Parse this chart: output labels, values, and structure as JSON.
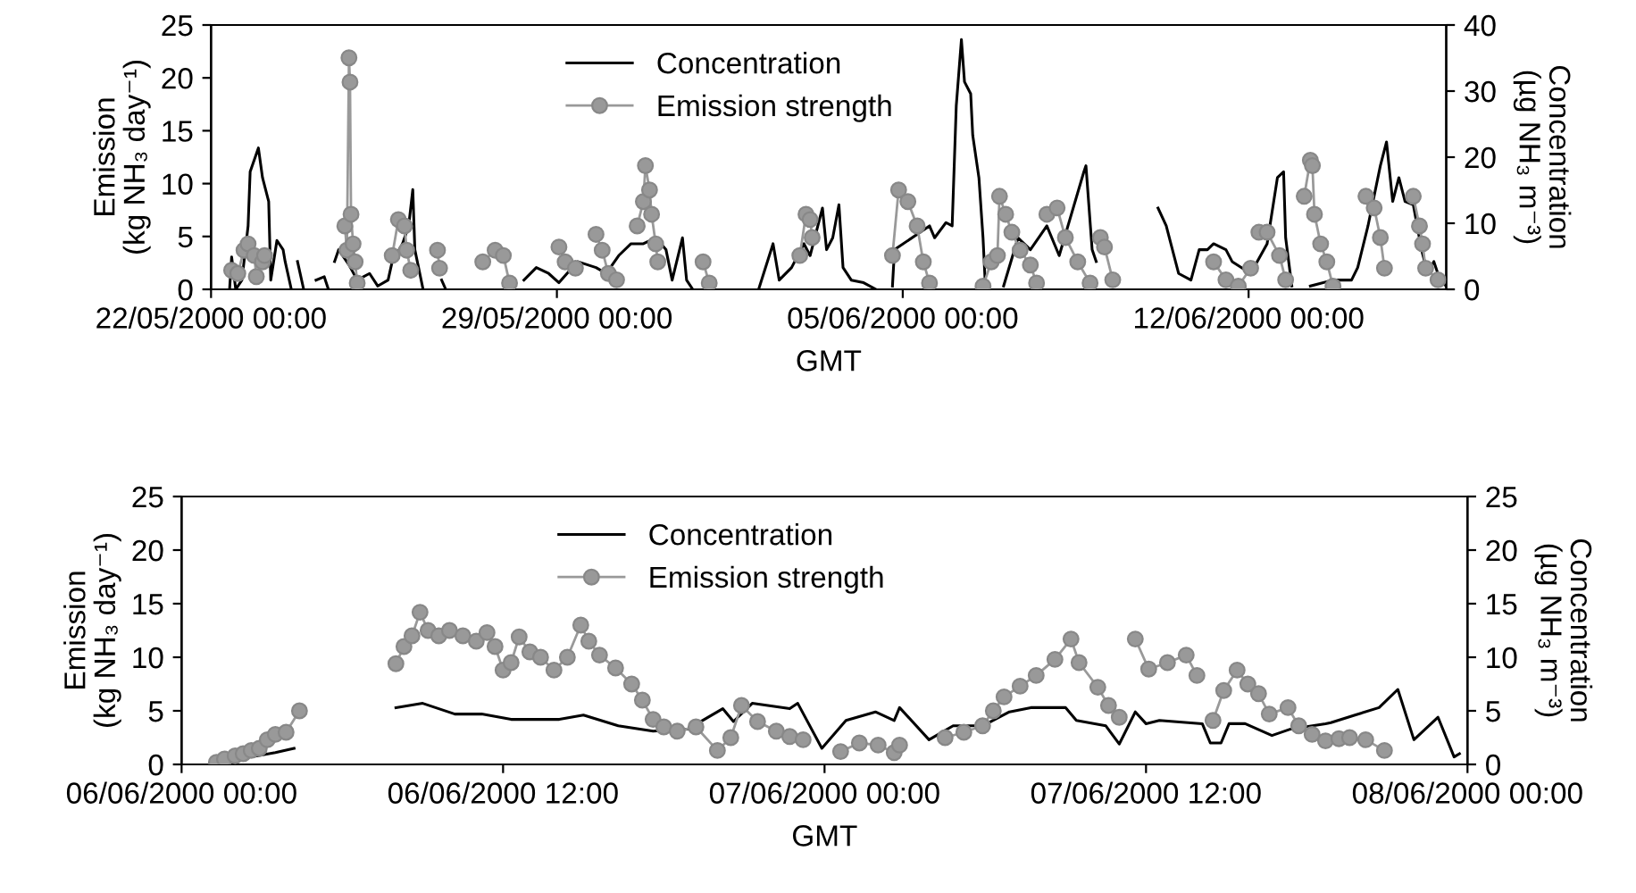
{
  "chart_data": [
    {
      "type": "line",
      "xlabel": "GMT",
      "ylabel": "Emission\n(kg NH₃ day⁻¹)",
      "y2label": "Concentration\n(µg NH₃ m⁻³)",
      "xlim": [
        "2000-05-22T00:00",
        "2000-06-16T00:00"
      ],
      "xticks": [
        {
          "value": "2000-05-22T00:00",
          "label": "22/05/2000 00:00"
        },
        {
          "value": "2000-05-29T00:00",
          "label": "29/05/2000 00:00"
        },
        {
          "value": "2000-06-05T00:00",
          "label": "05/06/2000 00:00"
        },
        {
          "value": "2000-06-12T00:00",
          "label": "12/06/2000 00:00"
        }
      ],
      "ylim": [
        0,
        25
      ],
      "yticks": [
        0,
        5,
        10,
        15,
        20,
        25
      ],
      "y2lim": [
        0,
        40
      ],
      "y2ticks": [
        0,
        10,
        20,
        30,
        40
      ],
      "legend": "top",
      "grid": false,
      "series": [
        {
          "name": "Concentration",
          "axis": "y2",
          "color": "#000000",
          "marker": "none",
          "line_style": "solid",
          "x": [
            "2000-05-22T09:00",
            "2000-05-22T10:00",
            "2000-05-22T12:00",
            "2000-05-22T15:00",
            "2000-05-22T18:00",
            "2000-05-22T19:00",
            "2000-05-22T23:00",
            "2000-05-23T01:00",
            "2000-05-23T04:00",
            "2000-05-23T05:00",
            "2000-05-23T08:00",
            "2000-05-23T11:00",
            "2000-05-23T12:00",
            "2000-05-23T15:00",
            "2000-05-23T16:00",
            "2000-05-23T18:00",
            "2000-05-23T21:00",
            "2000-05-24T00:00",
            "2000-05-24T03:00",
            "2000-05-24T07:00",
            "2000-05-24T09:00",
            "2000-05-24T10:00",
            "2000-05-24T12:00",
            "2000-05-24T14:00",
            "2000-05-24T19:00",
            "2000-05-24T23:00",
            "2000-05-25T05:00",
            "2000-05-25T09:00",
            "2000-05-25T14:00",
            "2000-05-25T16:00",
            "2000-05-25T21:00",
            "2000-05-26T00:00",
            "2000-05-26T02:00",
            "2000-05-26T03:00",
            "2000-05-26T07:00",
            "2000-05-26T12:00",
            "2000-05-26T16:00",
            "2000-05-26T18:00",
            "2000-05-27T00:00",
            "2000-05-27T07:00",
            "2000-05-27T10:00",
            "2000-05-27T15:00",
            "2000-05-27T20:00",
            "2000-05-28T02:00",
            "2000-05-28T08:00",
            "2000-05-28T14:00",
            "2000-05-28T20:00",
            "2000-05-29T01:00",
            "2000-05-29T10:00",
            "2000-05-29T19:00",
            "2000-05-30T00:00",
            "2000-05-30T06:00",
            "2000-05-30T12:00",
            "2000-05-30T18:00",
            "2000-05-31T00:00",
            "2000-05-31T05:00",
            "2000-05-31T08:00",
            "2000-05-31T13:00",
            "2000-05-31T15:00",
            "2000-05-31T18:00",
            "2000-06-01T10:00",
            "2000-06-02T02:00",
            "2000-06-02T09:00",
            "2000-06-02T12:00",
            "2000-06-02T18:00",
            "2000-06-03T00:00",
            "2000-06-03T03:00",
            "2000-06-03T09:00",
            "2000-06-03T11:00",
            "2000-06-03T14:00",
            "2000-06-03T17:00",
            "2000-06-03T19:00",
            "2000-06-03T23:00",
            "2000-06-04T05:00",
            "2000-06-04T11:00",
            "2000-06-04T15:00",
            "2000-06-04T19:00",
            "2000-06-04T20:00",
            "2000-06-05T13:00",
            "2000-06-05T15:30",
            "2000-06-05T21:00",
            "2000-06-06T00:00",
            "2000-06-06T02:00",
            "2000-06-06T04:30",
            "2000-06-06T06:00",
            "2000-06-06T09:00",
            "2000-06-06T10:00",
            "2000-06-06T13:00",
            "2000-06-06T15:00",
            "2000-06-06T16:00",
            "2000-06-06T20:00",
            "2000-06-07T01:00",
            "2000-06-07T08:00",
            "2000-06-07T14:00",
            "2000-06-07T22:00",
            "2000-06-08T04:00",
            "2000-06-08T16:00",
            "2000-06-08T17:00",
            "2000-06-08T20:00",
            "2000-06-08T22:00",
            "2000-06-09T13:00",
            "2000-06-10T04:00",
            "2000-06-10T08:00",
            "2000-06-10T14:00",
            "2000-06-10T20:00",
            "2000-06-11T00:00",
            "2000-06-11T04:00",
            "2000-06-11T07:00",
            "2000-06-11T13:00",
            "2000-06-11T16:00",
            "2000-06-12T01:00",
            "2000-06-12T09:00",
            "2000-06-12T14:00",
            "2000-06-12T17:00",
            "2000-06-12T18:00",
            "2000-06-12T21:00",
            "2000-06-13T02:00",
            "2000-06-13T06:00",
            "2000-06-13T17:00",
            "2000-06-14T02:00",
            "2000-06-14T05:00",
            "2000-06-14T10:00",
            "2000-06-14T16:00",
            "2000-06-14T19:00",
            "2000-06-14T22:00",
            "2000-06-15T01:00",
            "2000-06-15T04:00",
            "2000-06-15T08:00",
            "2000-06-15T12:00",
            "2000-06-15T15:00",
            "2000-06-15T18:00",
            "2000-06-15T21:00",
            "2000-06-16T00:00"
          ],
          "values": [
            0,
            4.9,
            0,
            1.4,
            9.6,
            17.8,
            21.4,
            16.9,
            13.3,
            1.4,
            7.4,
            6.0,
            4.2,
            0,
            null,
            4.2,
            0,
            null,
            1.4,
            1.9,
            0,
            null,
            4.2,
            6.0,
            3.7,
            1.4,
            2.4,
            0.5,
            1.4,
            4.2,
            6.9,
            9.6,
            15.1,
            6.0,
            0,
            null,
            1.4,
            0,
            null,
            null,
            null,
            null,
            null,
            null,
            1.4,
            3.3,
            2.4,
            1.0,
            4.2,
            3.3,
            2.4,
            5.1,
            6.9,
            6.9,
            7.8,
            6.0,
            1.4,
            7.8,
            1.4,
            0,
            null,
            0,
            6.9,
            1.4,
            3.3,
            6.9,
            5.1,
            12.3,
            6.0,
            7.8,
            12.8,
            3.3,
            1.4,
            1.0,
            0,
            null,
            0.5,
            6.0,
            9.6,
            7.8,
            10.1,
            9.6,
            27.8,
            37.8,
            31.4,
            29.6,
            23.3,
            16.9,
            7.8,
            1.4,
            null,
            0.5,
            7.8,
            6.0,
            9.6,
            5.1,
            17.8,
            18.7,
            6.0,
            4.2,
            null,
            12.3,
            9.6,
            2.4,
            1.4,
            6.0,
            6.0,
            6.9,
            6.0,
            4.2,
            2.4,
            6.9,
            16.9,
            17.8,
            7.8,
            0.5,
            null,
            0.5,
            1.4,
            1.4,
            3.3,
            9.6,
            18.7,
            22.3,
            13.3,
            16.9,
            13.3,
            12.8,
            6.0,
            2.4,
            4.2,
            1.4,
            0.5
          ]
        },
        {
          "name": "Emission strength",
          "color": "#999999",
          "marker": "circle",
          "line_style": "solid",
          "x": [
            "2000-05-22T10:00",
            "2000-05-22T13:00",
            "2000-05-22T16:00",
            "2000-05-22T18:00",
            "2000-05-22T21:00",
            "2000-05-22T22:00",
            "2000-05-23T01:00",
            "2000-05-23T02:00",
            "2000-05-23T21:00",
            "2000-05-24T17:00",
            "2000-05-24T18:00",
            "2000-05-24T19:00",
            "2000-05-24T19:30",
            "2000-05-24T20:00",
            "2000-05-24T21:00",
            "2000-05-24T22:00",
            "2000-05-24T23:00",
            "2000-05-25T08:00",
            "2000-05-25T16:00",
            "2000-05-25T19:00",
            "2000-05-25T22:00",
            "2000-05-25T23:00",
            "2000-05-26T01:00",
            "2000-05-26T04:00",
            "2000-05-26T14:00",
            "2000-05-26T15:00",
            "2000-05-27T00:00",
            "2000-05-27T12:00",
            "2000-05-27T18:00",
            "2000-05-27T22:00",
            "2000-05-28T01:00",
            "2000-05-28T16:00",
            "2000-05-29T01:00",
            "2000-05-29T04:00",
            "2000-05-29T09:00",
            "2000-05-29T12:00",
            "2000-05-29T19:00",
            "2000-05-29T22:00",
            "2000-05-30T01:00",
            "2000-05-30T05:00",
            "2000-05-30T08:00",
            "2000-05-30T15:00",
            "2000-05-30T18:00",
            "2000-05-30T19:00",
            "2000-05-30T21:00",
            "2000-05-30T22:00",
            "2000-05-31T00:00",
            "2000-05-31T01:00",
            "2000-05-31T14:00",
            "2000-05-31T23:00",
            "2000-06-01T02:00",
            "2000-06-01T20:00",
            "2000-06-02T22:00",
            "2000-06-03T01:00",
            "2000-06-03T03:00",
            "2000-06-03T04:00",
            "2000-06-03T22:00",
            "2000-06-04T19:00",
            "2000-06-04T22:00",
            "2000-06-05T02:30",
            "2000-06-05T07:00",
            "2000-06-05T10:00",
            "2000-06-05T13:00",
            "2000-06-06T00:00",
            "2000-06-06T15:00",
            "2000-06-06T19:00",
            "2000-06-06T22:00",
            "2000-06-06T23:00",
            "2000-06-07T02:00",
            "2000-06-07T05:00",
            "2000-06-07T09:00",
            "2000-06-07T14:00",
            "2000-06-07T17:00",
            "2000-06-07T19:00",
            "2000-06-07T22:00",
            "2000-06-08T03:00",
            "2000-06-08T07:00",
            "2000-06-08T13:00",
            "2000-06-08T19:00",
            "2000-06-08T22:00",
            "2000-06-09T00:00",
            "2000-06-09T02:00",
            "2000-06-09T06:00",
            "2000-06-10T04:00",
            "2000-06-11T07:00",
            "2000-06-11T13:00",
            "2000-06-11T19:00",
            "2000-06-12T01:00",
            "2000-06-12T03:00",
            "2000-06-12T05:00",
            "2000-06-12T09:00",
            "2000-06-12T15:00",
            "2000-06-12T18:00",
            "2000-06-13T00:00",
            "2000-06-13T03:00",
            "2000-06-13T06:00",
            "2000-06-13T07:00",
            "2000-06-13T08:00",
            "2000-06-13T11:00",
            "2000-06-13T14:00",
            "2000-06-13T17:00",
            "2000-06-13T22:00",
            "2000-06-14T09:00",
            "2000-06-14T13:00",
            "2000-06-14T16:00",
            "2000-06-14T18:00",
            "2000-06-15T04:00",
            "2000-06-15T08:00",
            "2000-06-15T11:00",
            "2000-06-15T12:30",
            "2000-06-15T14:00",
            "2000-06-15T20:00"
          ],
          "values": [
            1.8,
            1.5,
            3.7,
            4.3,
            3.2,
            1.2,
            2.6,
            3.2,
            null,
            6.0,
            3.7,
            21.9,
            19.6,
            7.1,
            4.3,
            2.6,
            0.6,
            null,
            3.2,
            6.6,
            6.0,
            3.7,
            1.8,
            null,
            3.7,
            2.0,
            null,
            2.6,
            3.7,
            3.2,
            0.6,
            null,
            4.0,
            2.6,
            2.0,
            null,
            5.2,
            3.7,
            1.5,
            0.9,
            null,
            6.0,
            8.3,
            11.7,
            9.4,
            7.1,
            4.3,
            2.6,
            null,
            2.6,
            0.6,
            null,
            3.2,
            7.1,
            6.6,
            4.9,
            null,
            3.2,
            9.4,
            8.3,
            6.0,
            2.6,
            0.6,
            null,
            0.3,
            2.6,
            3.2,
            8.8,
            7.1,
            5.4,
            3.7,
            2.3,
            0.6,
            null,
            7.1,
            7.7,
            4.9,
            2.6,
            0.6,
            null,
            4.9,
            4.0,
            0.9,
            null,
            2.6,
            0.9,
            0.3,
            2.0,
            null,
            5.4,
            5.4,
            3.2,
            0.9,
            null,
            8.8,
            12.2,
            11.7,
            7.1,
            4.3,
            2.6,
            0.3,
            null,
            8.8,
            7.7,
            4.9,
            2.0,
            null,
            8.8,
            6.0,
            4.3,
            2.0,
            0.9
          ]
        }
      ]
    },
    {
      "type": "line",
      "xlabel": "GMT",
      "ylabel": "Emission\n(kg NH₃ day⁻¹)",
      "y2label": "Concentration\n(µg NH₃ m⁻³)",
      "xlim": [
        "2000-06-06T00:00",
        "2000-06-08T00:00"
      ],
      "xticks": [
        {
          "value": "2000-06-06T00:00",
          "label": "06/06/2000 00:00"
        },
        {
          "value": "2000-06-06T12:00",
          "label": "06/06/2000 12:00"
        },
        {
          "value": "2000-06-07T00:00",
          "label": "07/06/2000 00:00"
        },
        {
          "value": "2000-06-07T12:00",
          "label": "07/06/2000 12:00"
        },
        {
          "value": "2000-06-08T00:00",
          "label": "08/06/2000 00:00"
        }
      ],
      "ylim": [
        0,
        25
      ],
      "yticks": [
        0,
        5,
        10,
        15,
        20,
        25
      ],
      "y2lim": [
        0,
        25
      ],
      "y2ticks": [
        0,
        5,
        10,
        15,
        20,
        25
      ],
      "legend": "top",
      "grid": false,
      "series": [
        {
          "name": "Concentration",
          "axis": "y2",
          "color": "#000000",
          "marker": "none",
          "line_style": "solid",
          "x": [
            "2000-06-06T01:18",
            "2000-06-06T02:00",
            "2000-06-06T02:48",
            "2000-06-06T03:30",
            "2000-06-06T04:12",
            "2000-06-06T06:00",
            "2000-06-06T08:00",
            "2000-06-06T09:00",
            "2000-06-06T10:12",
            "2000-06-06T11:12",
            "2000-06-06T12:18",
            "2000-06-06T14:06",
            "2000-06-06T15:00",
            "2000-06-06T16:18",
            "2000-06-06T17:36",
            "2000-06-06T18:54",
            "2000-06-06T20:12",
            "2000-06-06T20:36",
            "2000-06-06T21:18",
            "2000-06-06T22:42",
            "2000-06-06T23:00",
            "2000-06-06T23:54",
            "2000-06-07T00:48",
            "2000-06-07T01:54",
            "2000-06-07T02:36",
            "2000-06-07T02:48",
            "2000-06-07T03:54",
            "2000-06-07T04:48",
            "2000-06-07T05:54",
            "2000-06-07T06:54",
            "2000-06-07T07:42",
            "2000-06-07T09:00",
            "2000-06-07T09:24",
            "2000-06-07T10:30",
            "2000-06-07T11:00",
            "2000-06-07T11:36",
            "2000-06-07T12:00",
            "2000-06-07T12:30",
            "2000-06-07T14:06",
            "2000-06-07T14:24",
            "2000-06-07T14:48",
            "2000-06-07T15:06",
            "2000-06-07T15:42",
            "2000-06-07T16:42",
            "2000-06-07T17:24",
            "2000-06-07T18:42",
            "2000-06-07T18:54",
            "2000-06-07T19:48",
            "2000-06-07T20:42",
            "2000-06-07T21:24",
            "2000-06-07T22:00",
            "2000-06-07T22:54",
            "2000-06-07T23:30",
            "2000-06-07T23:42"
          ],
          "values": [
            0.2,
            0.5,
            0.8,
            1.1,
            1.5,
            null,
            5.3,
            5.7,
            4.7,
            4.7,
            4.2,
            4.2,
            4.6,
            3.6,
            3.1,
            3.3,
            5.2,
            4.0,
            5.7,
            5.2,
            5.7,
            1.5,
            4.1,
            4.9,
            4.1,
            5.3,
            2.3,
            3.6,
            3.6,
            4.9,
            5.3,
            5.3,
            4.1,
            3.6,
            1.9,
            4.9,
            3.8,
            4.1,
            3.8,
            2.0,
            2.0,
            3.8,
            3.8,
            2.7,
            3.3,
            3.8,
            3.9,
            4.6,
            5.3,
            7.0,
            2.3,
            4.4,
            0.7,
            1.0
          ]
        },
        {
          "name": "Emission strength",
          "color": "#999999",
          "marker": "circle",
          "line_style": "solid",
          "x": [
            "2000-06-06T01:18",
            "2000-06-06T01:36",
            "2000-06-06T02:00",
            "2000-06-06T02:18",
            "2000-06-06T02:36",
            "2000-06-06T02:54",
            "2000-06-06T03:12",
            "2000-06-06T03:30",
            "2000-06-06T03:54",
            "2000-06-06T04:24",
            "2000-06-06T06:00",
            "2000-06-06T08:00",
            "2000-06-06T08:18",
            "2000-06-06T08:36",
            "2000-06-06T08:54",
            "2000-06-06T09:12",
            "2000-06-06T09:36",
            "2000-06-06T10:00",
            "2000-06-06T10:30",
            "2000-06-06T11:00",
            "2000-06-06T11:24",
            "2000-06-06T11:42",
            "2000-06-06T12:00",
            "2000-06-06T12:18",
            "2000-06-06T12:36",
            "2000-06-06T13:00",
            "2000-06-06T13:24",
            "2000-06-06T13:54",
            "2000-06-06T14:24",
            "2000-06-06T14:54",
            "2000-06-06T15:12",
            "2000-06-06T15:36",
            "2000-06-06T16:12",
            "2000-06-06T16:48",
            "2000-06-06T17:12",
            "2000-06-06T17:36",
            "2000-06-06T18:00",
            "2000-06-06T18:30",
            "2000-06-06T19:12",
            "2000-06-06T20:00",
            "2000-06-06T20:30",
            "2000-06-06T20:54",
            "2000-06-06T21:30",
            "2000-06-06T22:12",
            "2000-06-06T22:42",
            "2000-06-06T23:12",
            "2000-06-07T00:00",
            "2000-06-07T00:36",
            "2000-06-07T01:18",
            "2000-06-07T02:00",
            "2000-06-07T02:36",
            "2000-06-07T02:48",
            "2000-06-07T03:30",
            "2000-06-07T04:30",
            "2000-06-07T05:12",
            "2000-06-07T05:54",
            "2000-06-07T06:18",
            "2000-06-07T06:42",
            "2000-06-07T07:18",
            "2000-06-07T07:54",
            "2000-06-07T08:36",
            "2000-06-07T09:12",
            "2000-06-07T09:30",
            "2000-06-07T10:12",
            "2000-06-07T10:36",
            "2000-06-07T11:00",
            "2000-06-07T11:18",
            "2000-06-07T11:36",
            "2000-06-07T12:06",
            "2000-06-07T12:48",
            "2000-06-07T13:30",
            "2000-06-07T13:54",
            "2000-06-07T14:12",
            "2000-06-07T14:30",
            "2000-06-07T14:54",
            "2000-06-07T15:24",
            "2000-06-07T15:48",
            "2000-06-07T16:12",
            "2000-06-07T16:36",
            "2000-06-07T17:18",
            "2000-06-07T17:42",
            "2000-06-07T18:12",
            "2000-06-07T18:42",
            "2000-06-07T19:12",
            "2000-06-07T19:36",
            "2000-06-07T20:12",
            "2000-06-07T20:54"
          ],
          "values": [
            0.2,
            0.5,
            0.8,
            1.0,
            1.3,
            1.5,
            2.3,
            2.8,
            3.0,
            5.0,
            null,
            9.4,
            11.0,
            12.0,
            14.2,
            12.5,
            12.0,
            12.5,
            12.0,
            11.5,
            12.3,
            11.0,
            8.8,
            9.5,
            11.9,
            10.5,
            10.0,
            8.8,
            10.0,
            13.0,
            11.5,
            10.2,
            9.0,
            7.5,
            6.0,
            4.2,
            3.5,
            3.1,
            3.5,
            1.3,
            2.5,
            5.5,
            4.0,
            3.1,
            2.6,
            2.3,
            null,
            1.2,
            2.0,
            1.8,
            1.1,
            1.8,
            null,
            2.5,
            3.0,
            3.6,
            5.0,
            6.3,
            7.3,
            8.3,
            9.8,
            11.7,
            9.5,
            7.2,
            5.5,
            4.4,
            null,
            11.7,
            8.9,
            9.5,
            10.2,
            8.3,
            null,
            4.1,
            6.9,
            8.8,
            7.5,
            6.6,
            4.7,
            5.3,
            3.6,
            2.8,
            2.2,
            2.4,
            2.5,
            2.3,
            1.3
          ]
        }
      ]
    }
  ]
}
